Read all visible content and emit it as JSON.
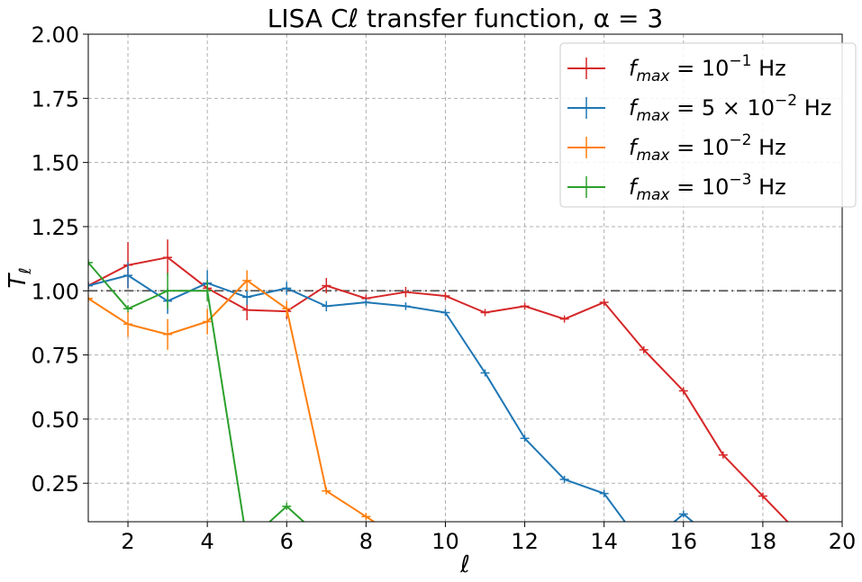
{
  "chart_data": {
    "type": "line",
    "title": "LISA Cℓ transfer function, α = 3",
    "xlabel": "ℓ",
    "ylabel": "Tℓ",
    "xlim": [
      1,
      20
    ],
    "ylim": [
      0.1,
      2.0
    ],
    "xticks": [
      2,
      4,
      6,
      8,
      10,
      12,
      14,
      16,
      18,
      20
    ],
    "xtick_labels": [
      "2",
      "4",
      "6",
      "8",
      "10",
      "12",
      "14",
      "16",
      "18",
      "20"
    ],
    "yticks": [
      0.25,
      0.5,
      0.75,
      1.0,
      1.25,
      1.5,
      1.75,
      2.0
    ],
    "ytick_labels": [
      "0.25",
      "0.50",
      "0.75",
      "1.00",
      "1.25",
      "1.50",
      "1.75",
      "2.00"
    ],
    "grid": true,
    "legend_position": "top-right",
    "reference_line": {
      "y": 1.0,
      "style": "dash-dot",
      "color": "#555555"
    },
    "series": [
      {
        "name": "f_max = 10^-1 Hz",
        "legend": {
          "main": "f",
          "sub": "max",
          "eq": " = 10",
          "sup": "−1",
          "unit": " Hz"
        },
        "color": "#d62728",
        "x": [
          1,
          2,
          3,
          4,
          5,
          6,
          7,
          8,
          9,
          10,
          11,
          12,
          13,
          14,
          15,
          16,
          17,
          18,
          19
        ],
        "y": [
          1.02,
          1.1,
          1.13,
          1.01,
          0.925,
          0.92,
          1.02,
          0.97,
          0.995,
          0.98,
          0.915,
          0.94,
          0.89,
          0.955,
          0.77,
          0.61,
          0.36,
          0.2,
          0.04
        ],
        "err": [
          0.0,
          0.09,
          0.07,
          0.03,
          0.04,
          0.03,
          0.03,
          0.015,
          0.02,
          0.015,
          0.01,
          0.01,
          0.01,
          0.01,
          0.01,
          0.0,
          0.0,
          0.0,
          0.0
        ]
      },
      {
        "name": "f_max = 5×10^-2 Hz",
        "legend": {
          "main": "f",
          "sub": "max",
          "eq": " = 5 × 10",
          "sup": "−2",
          "unit": " Hz"
        },
        "color": "#1f77b4",
        "x": [
          1,
          2,
          3,
          4,
          5,
          6,
          7,
          8,
          9,
          10,
          11,
          12,
          13,
          14,
          15,
          16,
          17
        ],
        "y": [
          1.02,
          1.06,
          0.96,
          1.03,
          0.975,
          1.01,
          0.94,
          0.955,
          0.94,
          0.915,
          0.68,
          0.425,
          0.265,
          0.21,
          0.0,
          0.13,
          0.0
        ],
        "err": [
          0.0,
          0.05,
          0.05,
          0.05,
          0.03,
          0.025,
          0.02,
          0.01,
          0.015,
          0.01,
          0.01,
          0.0,
          0.0,
          0.0,
          0.0,
          0.0,
          0.0
        ]
      },
      {
        "name": "f_max = 10^-2 Hz",
        "legend": {
          "main": "f",
          "sub": "max",
          "eq": " = 10",
          "sup": "−2",
          "unit": " Hz"
        },
        "color": "#ff7f0e",
        "x": [
          1,
          2,
          3,
          4,
          5,
          6,
          7,
          8,
          9
        ],
        "y": [
          0.97,
          0.87,
          0.83,
          0.88,
          1.04,
          0.93,
          0.22,
          0.12,
          0.02
        ],
        "err": [
          0.0,
          0.05,
          0.06,
          0.05,
          0.04,
          0.03,
          0.0,
          0.0,
          0.0
        ]
      },
      {
        "name": "f_max = 10^-3 Hz",
        "legend": {
          "main": "f",
          "sub": "max",
          "eq": " = 10",
          "sup": "−3",
          "unit": " Hz"
        },
        "color": "#2ca02c",
        "x": [
          1,
          2,
          3,
          4,
          5,
          6,
          7
        ],
        "y": [
          1.11,
          0.93,
          1.0,
          1.0,
          0.02,
          0.16,
          0.02
        ],
        "err": [
          0.0,
          0.0,
          0.07,
          0.04,
          0.0,
          0.0,
          0.0
        ]
      }
    ]
  }
}
